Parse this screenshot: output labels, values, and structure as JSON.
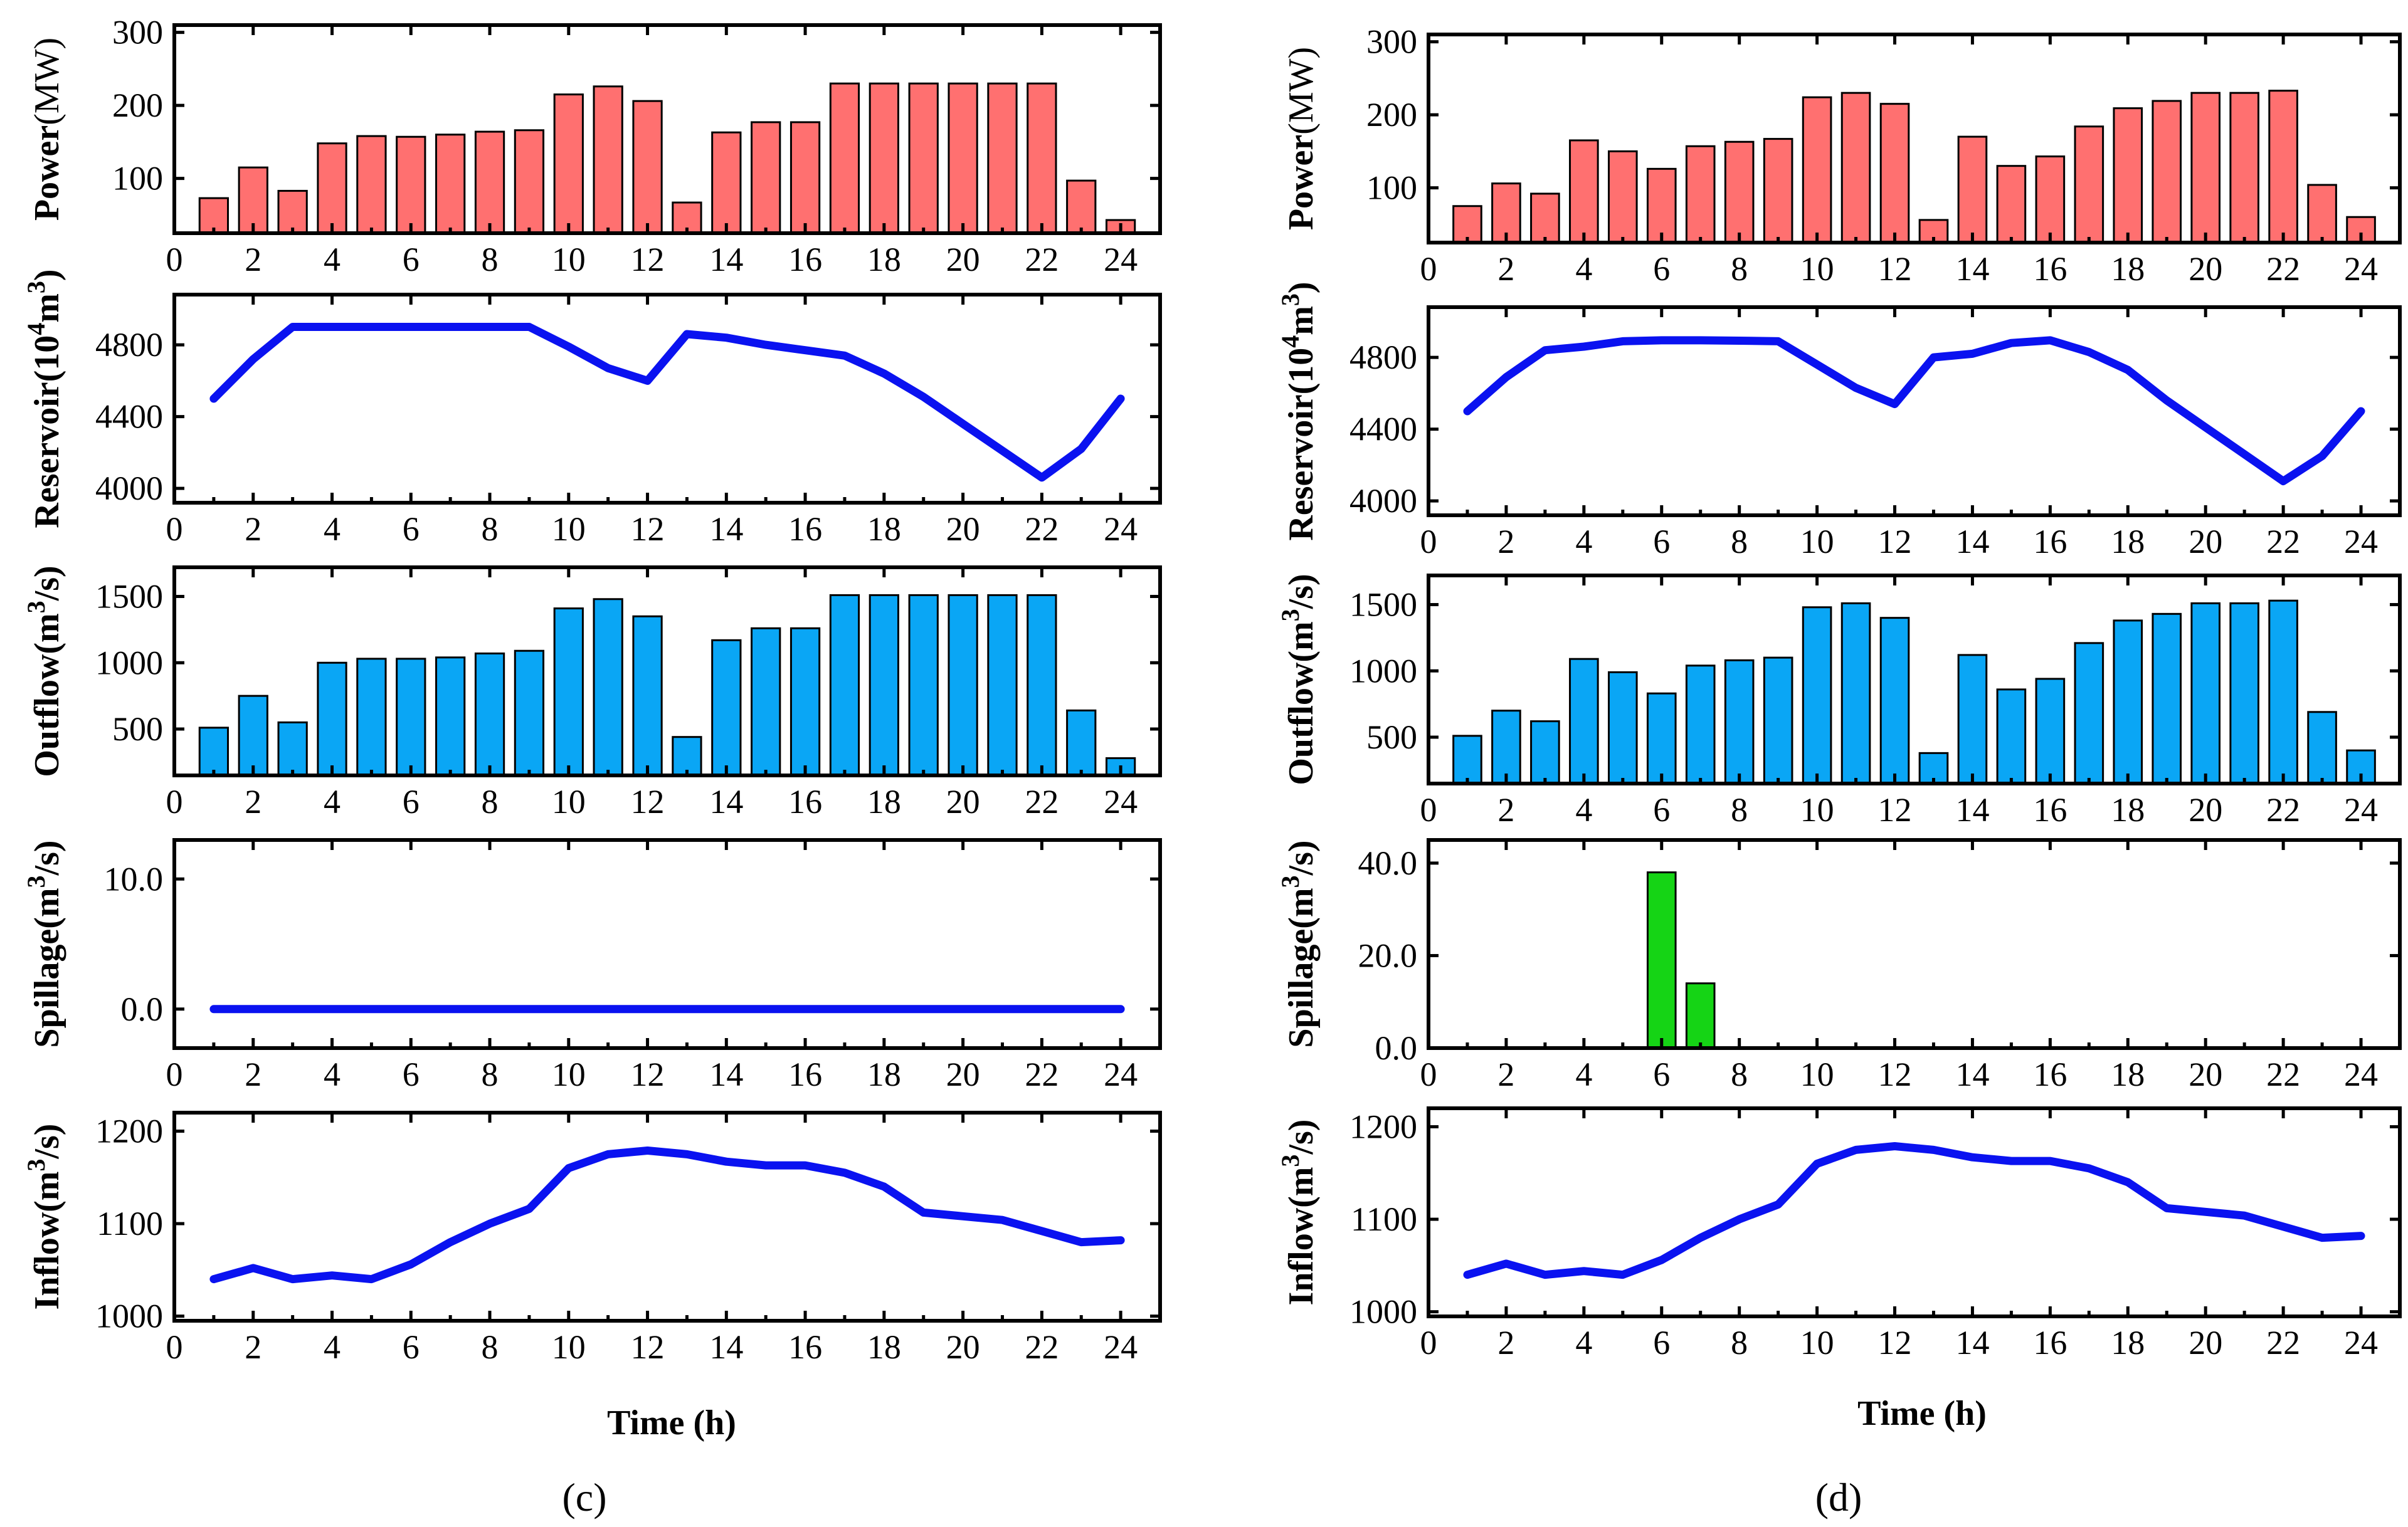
{
  "figure": {
    "time_label": "Time (h)",
    "panel_labels": [
      "(c)",
      "(d)"
    ]
  },
  "colors": {
    "power": "#ff7070",
    "outflow": "#0aa6f5",
    "spillage": "#15d415",
    "line": "#0a12f0"
  },
  "chart_data": [
    {
      "id": "c-power",
      "type": "bar",
      "color_key": "power",
      "ylabel": {
        "base": "Power",
        "sup": "",
        "rest": "",
        "unit": "(MW)"
      },
      "xlabel": "",
      "x": [
        1,
        2,
        3,
        4,
        5,
        6,
        7,
        8,
        9,
        10,
        11,
        12,
        13,
        14,
        15,
        16,
        17,
        18,
        19,
        20,
        21,
        22,
        23,
        24
      ],
      "values": [
        73,
        115,
        83,
        148,
        158,
        157,
        160,
        164,
        166,
        215,
        226,
        206,
        67,
        163,
        177,
        177,
        230,
        230,
        230,
        230,
        230,
        230,
        97,
        43
      ],
      "xlim": [
        0,
        25
      ],
      "ylim": [
        25,
        310
      ],
      "yticks": [
        "100",
        "200",
        "300"
      ],
      "yticks_val": [
        100,
        200,
        300
      ],
      "xticks": [
        "0",
        "2",
        "4",
        "6",
        "8",
        "10",
        "12",
        "14",
        "16",
        "18",
        "20",
        "22",
        "24"
      ]
    },
    {
      "id": "c-reservoir",
      "type": "line",
      "color_key": "line",
      "ylabel": {
        "base": "Reservoir(10",
        "sup": "4",
        "rest": "m",
        "sup2": "3",
        "unit": ")"
      },
      "xlabel": "",
      "x": [
        1,
        2,
        3,
        4,
        5,
        6,
        7,
        8,
        9,
        10,
        11,
        12,
        13,
        14,
        15,
        16,
        17,
        18,
        19,
        20,
        21,
        22,
        23,
        24
      ],
      "values": [
        4500,
        4720,
        4900,
        4900,
        4900,
        4900,
        4900,
        4900,
        4900,
        4790,
        4670,
        4600,
        4860,
        4840,
        4800,
        4770,
        4740,
        4640,
        4510,
        4360,
        4210,
        4060,
        4220,
        4500
      ],
      "xlim": [
        0,
        25
      ],
      "ylim": [
        3920,
        5080
      ],
      "yticks": [
        "4000",
        "4400",
        "4800"
      ],
      "yticks_val": [
        4000,
        4400,
        4800
      ],
      "xticks": [
        "0",
        "2",
        "4",
        "6",
        "8",
        "10",
        "12",
        "14",
        "16",
        "18",
        "20",
        "22",
        "24"
      ]
    },
    {
      "id": "c-outflow",
      "type": "bar",
      "color_key": "outflow",
      "ylabel": {
        "base": "Outflow(m",
        "sup": "3",
        "rest": "/s)",
        "unit": ""
      },
      "xlabel": "",
      "x": [
        1,
        2,
        3,
        4,
        5,
        6,
        7,
        8,
        9,
        10,
        11,
        12,
        13,
        14,
        15,
        16,
        17,
        18,
        19,
        20,
        21,
        22,
        23,
        24
      ],
      "values": [
        510,
        750,
        550,
        1000,
        1030,
        1030,
        1040,
        1070,
        1090,
        1410,
        1480,
        1350,
        440,
        1170,
        1260,
        1260,
        1510,
        1510,
        1510,
        1510,
        1510,
        1510,
        640,
        280
      ],
      "xlim": [
        0,
        25
      ],
      "ylim": [
        150,
        1720
      ],
      "yticks": [
        "500",
        "1000",
        "1500"
      ],
      "yticks_val": [
        500,
        1000,
        1500
      ],
      "xticks": [
        "0",
        "2",
        "4",
        "6",
        "8",
        "10",
        "12",
        "14",
        "16",
        "18",
        "20",
        "22",
        "24"
      ]
    },
    {
      "id": "c-spillage",
      "type": "line",
      "color_key": "line",
      "ylabel": {
        "base": "Spillage(m",
        "sup": "3",
        "rest": "/s)",
        "unit": ""
      },
      "xlabel": "",
      "x": [
        1,
        2,
        3,
        4,
        5,
        6,
        7,
        8,
        9,
        10,
        11,
        12,
        13,
        14,
        15,
        16,
        17,
        18,
        19,
        20,
        21,
        22,
        23,
        24
      ],
      "values": [
        0,
        0,
        0,
        0,
        0,
        0,
        0,
        0,
        0,
        0,
        0,
        0,
        0,
        0,
        0,
        0,
        0,
        0,
        0,
        0,
        0,
        0,
        0,
        0
      ],
      "xlim": [
        0,
        25
      ],
      "ylim": [
        -3,
        13
      ],
      "yticks": [
        "0.0",
        "10.0"
      ],
      "yticks_val": [
        0,
        10
      ],
      "xticks": [
        "0",
        "2",
        "4",
        "6",
        "8",
        "10",
        "12",
        "14",
        "16",
        "18",
        "20",
        "22",
        "24"
      ]
    },
    {
      "id": "c-inflow",
      "type": "line",
      "color_key": "line",
      "ylabel": {
        "base": "Inflow(m",
        "sup": "3",
        "rest": "/s)",
        "unit": ""
      },
      "xlabel": "Time (h)",
      "x": [
        1,
        2,
        3,
        4,
        5,
        6,
        7,
        8,
        9,
        10,
        11,
        12,
        13,
        14,
        15,
        16,
        17,
        18,
        19,
        20,
        21,
        22,
        23,
        24
      ],
      "values": [
        1040,
        1052,
        1040,
        1044,
        1040,
        1056,
        1080,
        1100,
        1116,
        1160,
        1175,
        1179,
        1175,
        1167,
        1163,
        1163,
        1155,
        1140,
        1112,
        1108,
        1104,
        1092,
        1080,
        1082
      ],
      "xlim": [
        0,
        25
      ],
      "ylim": [
        995,
        1220
      ],
      "yticks": [
        "1000",
        "1100",
        "1200"
      ],
      "yticks_val": [
        1000,
        1100,
        1200
      ],
      "xticks": [
        "0",
        "2",
        "4",
        "6",
        "8",
        "10",
        "12",
        "14",
        "16",
        "18",
        "20",
        "22",
        "24"
      ]
    },
    {
      "id": "d-power",
      "type": "bar",
      "color_key": "power",
      "ylabel": {
        "base": "Power",
        "sup": "",
        "rest": "",
        "unit": "(MW)"
      },
      "xlabel": "",
      "x": [
        1,
        2,
        3,
        4,
        5,
        6,
        7,
        8,
        9,
        10,
        11,
        12,
        13,
        14,
        15,
        16,
        17,
        18,
        19,
        20,
        21,
        22,
        23,
        24
      ],
      "values": [
        75,
        106,
        92,
        165,
        150,
        126,
        157,
        163,
        167,
        224,
        230,
        215,
        56,
        170,
        130,
        143,
        184,
        209,
        219,
        230,
        230,
        233,
        104,
        60
      ],
      "xlim": [
        0,
        25
      ],
      "ylim": [
        25,
        310
      ],
      "yticks": [
        "100",
        "200",
        "300"
      ],
      "yticks_val": [
        100,
        200,
        300
      ],
      "xticks": [
        "0",
        "2",
        "4",
        "6",
        "8",
        "10",
        "12",
        "14",
        "16",
        "18",
        "20",
        "22",
        "24"
      ]
    },
    {
      "id": "d-reservoir",
      "type": "line",
      "color_key": "line",
      "ylabel": {
        "base": "Reservoir(10",
        "sup": "4",
        "rest": "m",
        "sup2": "3",
        "unit": ")"
      },
      "xlabel": "",
      "x": [
        1,
        2,
        3,
        4,
        5,
        6,
        7,
        8,
        9,
        10,
        11,
        12,
        13,
        14,
        15,
        16,
        17,
        18,
        19,
        20,
        21,
        22,
        23,
        24
      ],
      "values": [
        4500,
        4690,
        4840,
        4860,
        4890,
        4895,
        4895,
        4893,
        4890,
        4760,
        4630,
        4540,
        4800,
        4820,
        4880,
        4895,
        4830,
        4730,
        4560,
        4410,
        4260,
        4110,
        4250,
        4500
      ],
      "xlim": [
        0,
        25
      ],
      "ylim": [
        3920,
        5080
      ],
      "yticks": [
        "4000",
        "4400",
        "4800"
      ],
      "yticks_val": [
        4000,
        4400,
        4800
      ],
      "xticks": [
        "0",
        "2",
        "4",
        "6",
        "8",
        "10",
        "12",
        "14",
        "16",
        "18",
        "20",
        "22",
        "24"
      ]
    },
    {
      "id": "d-outflow",
      "type": "bar",
      "color_key": "outflow",
      "ylabel": {
        "base": "Outflow(m",
        "sup": "3",
        "rest": "/s)",
        "unit": ""
      },
      "xlabel": "",
      "x": [
        1,
        2,
        3,
        4,
        5,
        6,
        7,
        8,
        9,
        10,
        11,
        12,
        13,
        14,
        15,
        16,
        17,
        18,
        19,
        20,
        21,
        22,
        23,
        24
      ],
      "values": [
        510,
        700,
        620,
        1090,
        990,
        830,
        1040,
        1080,
        1100,
        1480,
        1510,
        1400,
        380,
        1120,
        860,
        940,
        1210,
        1380,
        1430,
        1510,
        1510,
        1530,
        690,
        400
      ],
      "xlim": [
        0,
        25
      ],
      "ylim": [
        150,
        1720
      ],
      "yticks": [
        "500",
        "1000",
        "1500"
      ],
      "yticks_val": [
        500,
        1000,
        1500
      ],
      "xticks": [
        "0",
        "2",
        "4",
        "6",
        "8",
        "10",
        "12",
        "14",
        "16",
        "18",
        "20",
        "22",
        "24"
      ]
    },
    {
      "id": "d-spillage",
      "type": "bar",
      "color_key": "spillage",
      "ylabel": {
        "base": "Spillage(m",
        "sup": "3",
        "rest": "/s)",
        "unit": ""
      },
      "xlabel": "",
      "x": [
        6,
        7
      ],
      "values": [
        38,
        14
      ],
      "xlim": [
        0,
        25
      ],
      "ylim": [
        0,
        45
      ],
      "yticks": [
        "0.0",
        "20.0",
        "40.0"
      ],
      "yticks_val": [
        0,
        20,
        40
      ],
      "xticks": [
        "0",
        "2",
        "4",
        "6",
        "8",
        "10",
        "12",
        "14",
        "16",
        "18",
        "20",
        "22",
        "24"
      ]
    },
    {
      "id": "d-inflow",
      "type": "line",
      "color_key": "line",
      "ylabel": {
        "base": "Inflow(m",
        "sup": "3",
        "rest": "/s)",
        "unit": ""
      },
      "xlabel": "Time (h)",
      "x": [
        1,
        2,
        3,
        4,
        5,
        6,
        7,
        8,
        9,
        10,
        11,
        12,
        13,
        14,
        15,
        16,
        17,
        18,
        19,
        20,
        21,
        22,
        23,
        24
      ],
      "values": [
        1040,
        1052,
        1040,
        1044,
        1040,
        1056,
        1080,
        1100,
        1116,
        1160,
        1175,
        1179,
        1175,
        1167,
        1163,
        1163,
        1155,
        1140,
        1112,
        1108,
        1104,
        1092,
        1080,
        1082
      ],
      "xlim": [
        0,
        25
      ],
      "ylim": [
        995,
        1220
      ],
      "yticks": [
        "1000",
        "1100",
        "1200"
      ],
      "yticks_val": [
        1000,
        1100,
        1200
      ],
      "xticks": [
        "0",
        "2",
        "4",
        "6",
        "8",
        "10",
        "12",
        "14",
        "16",
        "18",
        "20",
        "22",
        "24"
      ]
    }
  ]
}
